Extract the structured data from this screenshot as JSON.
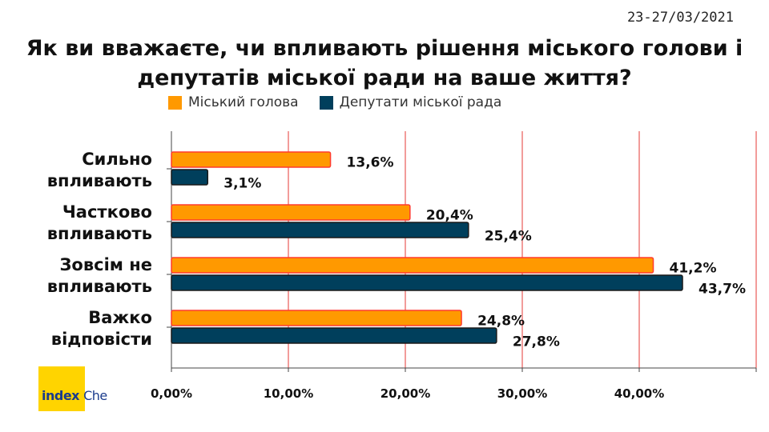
{
  "date": "23-27/03/2021",
  "title_line1": "Як ви вважаєте, чи впливають рішення міського голови і",
  "title_line2": "депутатів міської ради на ваше життя?",
  "logo": {
    "word1": "index",
    "word2": "Che"
  },
  "colors": {
    "series1": "#ff9900",
    "series1_border": "#ff3b2f",
    "series2": "#003f5c",
    "series2_border": "#1a1a1a",
    "grid": "#e53935",
    "logo_bg": "#ffd400"
  },
  "chart_data": {
    "type": "bar",
    "orientation": "horizontal",
    "categories": [
      [
        "Сильно",
        "впливають"
      ],
      [
        "Частково",
        "впливають"
      ],
      [
        "Зовсім не",
        "впливають"
      ],
      [
        "Важко",
        "відповісти"
      ]
    ],
    "series": [
      {
        "name": "Міський голова",
        "values": [
          13.6,
          20.4,
          41.2,
          24.8
        ],
        "labels": [
          "13,6%",
          "20,4%",
          "41,2%",
          "24,8%"
        ]
      },
      {
        "name": "Депутати міської рада",
        "values": [
          3.1,
          25.4,
          43.7,
          27.8
        ],
        "labels": [
          "3,1%",
          "25,4%",
          "43,7%",
          "27,8%"
        ]
      }
    ],
    "xlim": [
      0,
      50
    ],
    "xticks": [
      0,
      10,
      20,
      30,
      40
    ],
    "xtick_labels": [
      "0,00%",
      "10,00%",
      "20,00%",
      "30,00%",
      "40,00%"
    ],
    "grid": true,
    "legend": "top"
  }
}
